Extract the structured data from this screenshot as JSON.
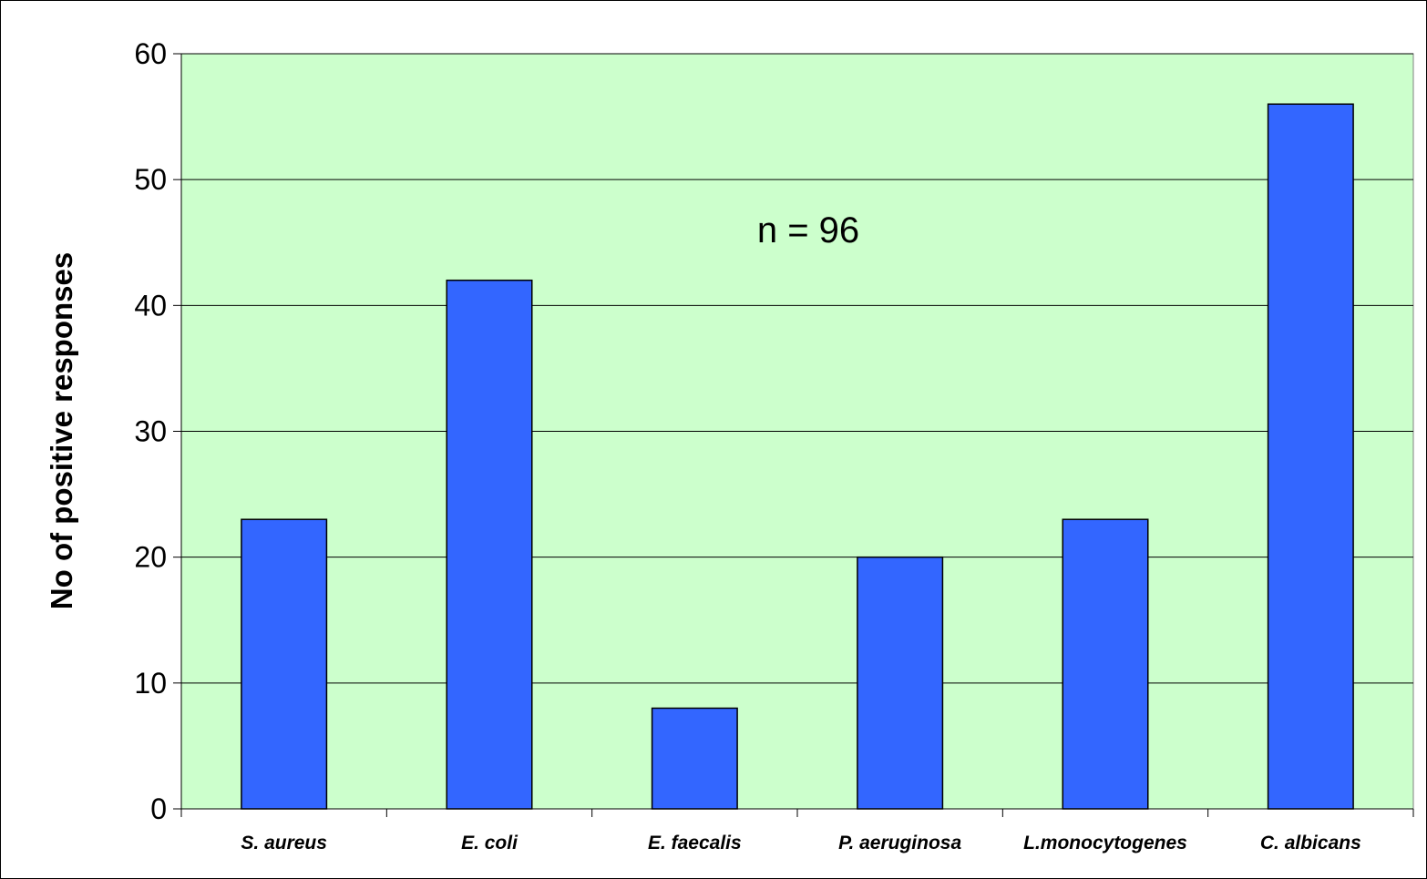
{
  "chart_data": {
    "type": "bar",
    "categories": [
      "S. aureus",
      "E. coli",
      "E. faecalis",
      "P. aeruginosa",
      "L.monocytogenes",
      "C. albicans"
    ],
    "values": [
      23,
      42,
      8,
      20,
      23,
      56
    ],
    "title": "",
    "xlabel": "",
    "ylabel": "No of positive responses",
    "ylim": [
      0,
      60
    ],
    "yticks": [
      0,
      10,
      20,
      30,
      40,
      50,
      60
    ],
    "grid": true,
    "annotation": "n = 96",
    "colors": {
      "bar": "#3366ff",
      "plot_background": "#ccffcc",
      "gridline": "#000000"
    }
  }
}
